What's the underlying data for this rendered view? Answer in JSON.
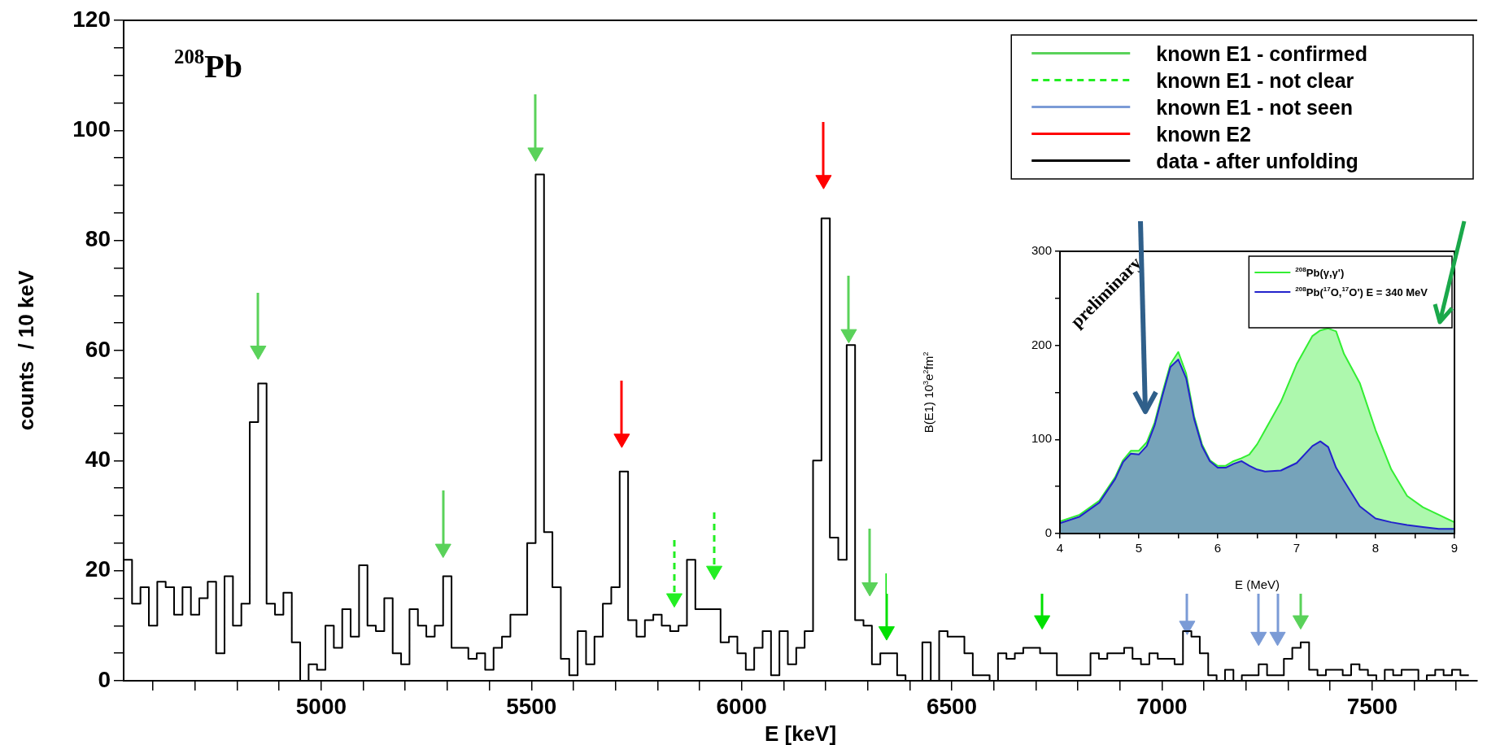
{
  "chart_data": [
    {
      "type": "step",
      "xlabel": "E [keV]",
      "ylabel": "counts  / 10 keV",
      "xlim": [
        4530,
        7750
      ],
      "ylim": [
        0,
        120
      ],
      "xticks": [
        {
          "value": 4600,
          "label": null
        },
        {
          "value": 4700,
          "label": null
        },
        {
          "value": 4800,
          "label": null
        },
        {
          "value": 4900,
          "label": null
        },
        5000,
        {
          "value": 5100,
          "label": null
        },
        {
          "value": 5200,
          "label": null
        },
        {
          "value": 5300,
          "label": null
        },
        {
          "value": 5400,
          "label": null
        },
        5500,
        {
          "value": 5600,
          "label": null
        },
        {
          "value": 5700,
          "label": null
        },
        {
          "value": 5800,
          "label": null
        },
        {
          "value": 5900,
          "label": null
        },
        6000,
        {
          "value": 6100,
          "label": null
        },
        {
          "value": 6200,
          "label": null
        },
        {
          "value": 6300,
          "label": null
        },
        {
          "value": 6400,
          "label": null
        },
        6500,
        {
          "value": 6600,
          "label": null
        },
        {
          "value": 6700,
          "label": null
        },
        {
          "value": 6800,
          "label": null
        },
        {
          "value": 6900,
          "label": null
        },
        7000,
        {
          "value": 7100,
          "label": null
        },
        {
          "value": 7200,
          "label": null
        },
        {
          "value": 7300,
          "label": null
        },
        {
          "value": 7400,
          "label": null
        },
        7500,
        {
          "value": 7600,
          "label": null
        },
        {
          "value": 7700,
          "label": null
        }
      ],
      "yticks": [
        0,
        {
          "value": 5,
          "label": null
        },
        {
          "value": 10,
          "label": null
        },
        {
          "value": 15,
          "label": null
        },
        20,
        {
          "value": 25,
          "label": null
        },
        {
          "value": 30,
          "label": null
        },
        {
          "value": 35,
          "label": null
        },
        40,
        {
          "value": 45,
          "label": null
        },
        {
          "value": 50,
          "label": null
        },
        {
          "value": 55,
          "label": null
        },
        60,
        {
          "value": 65,
          "label": null
        },
        {
          "value": 70,
          "label": null
        },
        {
          "value": 75,
          "label": null
        },
        80,
        {
          "value": 85,
          "label": null
        },
        {
          "value": 90,
          "label": null
        },
        {
          "value": 95,
          "label": null
        },
        100,
        {
          "value": 105,
          "label": null
        },
        {
          "value": 110,
          "label": null
        },
        {
          "value": 115,
          "label": null
        },
        120
      ],
      "legend": "top right",
      "annotations": [
        "$^{208}$Pb"
      ],
      "series": [
        {
          "name": "known E1 - confirmed",
          "type": "scatter",
          "marker": "triangle",
          "color": "#5ad25a",
          "colors": [
            "#5ad25a",
            "#5ad25a",
            "#5ad25a",
            "#5ad25a",
            "#5ad25a",
            "#00e000",
            "#00e000",
            "#5ad25a"
          ],
          "x": [
            4850,
            5290,
            5510,
            6255,
            6305,
            6345,
            6715,
            7330
          ],
          "values": [
            60,
            24,
            96,
            63,
            17,
            9,
            11,
            11
          ]
        },
        {
          "name": "known E1 - not clear",
          "type": "scatter",
          "marker": "triangle",
          "line_style": "dashed",
          "color": "#22ee22",
          "x": [
            5840,
            5935
          ],
          "values": [
            15,
            20
          ]
        },
        {
          "name": "known E1 - not seen",
          "type": "scatter",
          "marker": "triangle",
          "color": "#7b9bd6",
          "x": [
            7060,
            7230,
            7275
          ],
          "values": [
            10,
            8,
            8
          ]
        },
        {
          "name": "known E2",
          "type": "scatter",
          "marker": "triangle",
          "color": "#ff0000",
          "x": [
            5715,
            6195
          ],
          "values": [
            44,
            91
          ]
        },
        {
          "name": "data - after unfolding",
          "marker": "none",
          "color": "#000000",
          "x": [
            4530,
            4550,
            4570,
            4590,
            4610,
            4630,
            4650,
            4670,
            4690,
            4710,
            4730,
            4750,
            4770,
            4790,
            4810,
            4830,
            4850,
            4870,
            4890,
            4910,
            4930,
            4950,
            4970,
            4990,
            5010,
            5030,
            5050,
            5070,
            5090,
            5110,
            5130,
            5150,
            5170,
            5190,
            5210,
            5230,
            5250,
            5270,
            5290,
            5310,
            5330,
            5350,
            5370,
            5390,
            5410,
            5430,
            5450,
            5470,
            5490,
            5510,
            5530,
            5550,
            5570,
            5590,
            5610,
            5630,
            5650,
            5670,
            5690,
            5710,
            5730,
            5750,
            5770,
            5790,
            5810,
            5830,
            5850,
            5870,
            5890,
            5910,
            5930,
            5950,
            5970,
            5990,
            6010,
            6030,
            6050,
            6070,
            6090,
            6110,
            6130,
            6150,
            6170,
            6190,
            6210,
            6230,
            6250,
            6270,
            6290,
            6310,
            6330,
            6350,
            6370,
            6390,
            6410,
            6430,
            6450,
            6470,
            6490,
            6510,
            6530,
            6550,
            6570,
            6590,
            6610,
            6630,
            6650,
            6670,
            6690,
            6710,
            6730,
            6750,
            6770,
            6790,
            6810,
            6830,
            6850,
            6870,
            6890,
            6910,
            6930,
            6950,
            6970,
            6990,
            7010,
            7030,
            7050,
            7070,
            7090,
            7110,
            7130,
            7150,
            7170,
            7190,
            7210,
            7230,
            7250,
            7270,
            7290,
            7310,
            7330,
            7350,
            7370,
            7390,
            7410,
            7430,
            7450,
            7470,
            7490,
            7510,
            7530,
            7550,
            7570,
            7590,
            7610,
            7630,
            7650,
            7670,
            7690,
            7710,
            7730
          ],
          "values": [
            22,
            14,
            17,
            10,
            18,
            17,
            12,
            17,
            12,
            15,
            18,
            5,
            19,
            10,
            14,
            47,
            54,
            14,
            12,
            16,
            7,
            0,
            3,
            2,
            10,
            6,
            13,
            8,
            21,
            10,
            9,
            15,
            5,
            3,
            13,
            10,
            8,
            10,
            19,
            6,
            6,
            4,
            5,
            2,
            6,
            8,
            12,
            12,
            25,
            92,
            27,
            17,
            4,
            1,
            9,
            3,
            8,
            14,
            17,
            38,
            11,
            8,
            11,
            12,
            10,
            9,
            10,
            22,
            13,
            13,
            13,
            7,
            8,
            5,
            2,
            6,
            9,
            1,
            9,
            3,
            6,
            9,
            40,
            84,
            26,
            22,
            61,
            11,
            10,
            3,
            5,
            5,
            1,
            0,
            0,
            7,
            0,
            9,
            8,
            8,
            5,
            1,
            1,
            0,
            5,
            4,
            5,
            6,
            6,
            5,
            5,
            1,
            1,
            1,
            1,
            5,
            4,
            5,
            5,
            6,
            4,
            3,
            5,
            4,
            4,
            3,
            9,
            8,
            5,
            1,
            0,
            2,
            0,
            1,
            1,
            3,
            1,
            1,
            4,
            6,
            7,
            2,
            1,
            2,
            2,
            1,
            3,
            2,
            1,
            0,
            2,
            1,
            2,
            2,
            0,
            1,
            2,
            1,
            2,
            1,
            1
          ]
        }
      ]
    },
    {
      "type": "area",
      "xlabel": "E (MeV)",
      "ylabel": "B(E1) 10$^{3}$e$^{2}$fm$^{2}$",
      "xlim": [
        4,
        9
      ],
      "ylim": [
        0,
        300
      ],
      "xticks": [
        4,
        {
          "value": 4.5,
          "label": null
        },
        5,
        {
          "value": 5.5,
          "label": null
        },
        6,
        {
          "value": 6.5,
          "label": null
        },
        7,
        {
          "value": 7.5,
          "label": null
        },
        8,
        {
          "value": 8.5,
          "label": null
        },
        9
      ],
      "yticks": [
        0,
        {
          "value": 50,
          "label": null
        },
        100,
        {
          "value": 150,
          "label": null
        },
        200,
        {
          "value": 250,
          "label": null
        },
        300
      ],
      "legend": "top right",
      "annotations": [
        "preliminary"
      ],
      "x": [
        4,
        4.25,
        4.5,
        4.7,
        4.8,
        4.9,
        5,
        5.1,
        5.2,
        5.3,
        5.4,
        5.5,
        5.6,
        5.7,
        5.8,
        5.9,
        6,
        6.1,
        6.2,
        6.3,
        6.4,
        6.5,
        6.6,
        6.8,
        7,
        7.2,
        7.3,
        7.4,
        7.5,
        7.6,
        7.8,
        8,
        8.2,
        8.4,
        8.6,
        8.8,
        9
      ],
      "series": [
        {
          "name": "$^{208}$Pb(γ,γ')",
          "color": "#33ee33",
          "values": [
            13,
            20,
            35,
            60,
            78,
            88,
            88,
            97,
            118,
            150,
            180,
            193,
            170,
            125,
            95,
            78,
            72,
            72,
            77,
            80,
            84,
            95,
            110,
            140,
            180,
            210,
            216,
            218,
            215,
            191,
            160,
            110,
            68,
            40,
            28,
            20,
            12
          ]
        },
        {
          "name": "$^{208}$Pb($^{17}$O,$^{17}$O') E = 340 MeV",
          "color": "#2222cc",
          "values": [
            11,
            18,
            33,
            58,
            76,
            85,
            84,
            93,
            115,
            147,
            177,
            185,
            165,
            122,
            93,
            77,
            70,
            70,
            74,
            77,
            72,
            68,
            66,
            67,
            75,
            93,
            98,
            92,
            70,
            56,
            29,
            16,
            12,
            9,
            7,
            5,
            5
          ]
        }
      ]
    }
  ]
}
